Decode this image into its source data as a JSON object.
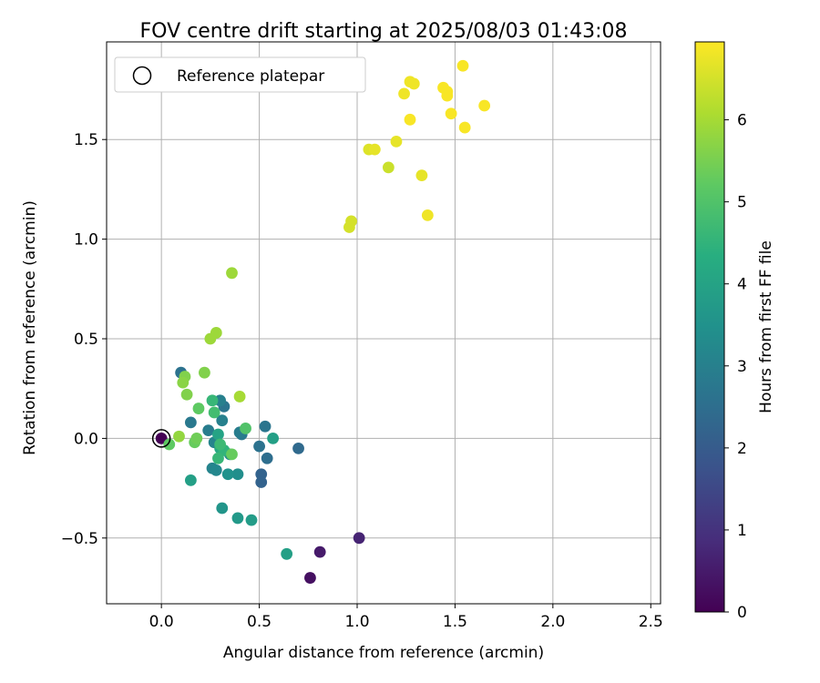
{
  "chart_data": {
    "type": "scatter",
    "title": "FOV centre drift starting at 2025/08/03 01:43:08",
    "xlabel": "Angular distance from reference (arcmin)",
    "ylabel": "Rotation from reference (arcmin)",
    "xlim": [
      -0.28,
      2.55
    ],
    "ylim": [
      -0.83,
      1.99
    ],
    "xticks": [
      0.0,
      0.5,
      1.0,
      1.5,
      2.0,
      2.5
    ],
    "xtick_labels": [
      "0.0",
      "0.5",
      "1.0",
      "1.5",
      "2.0",
      "2.5"
    ],
    "yticks": [
      -0.5,
      0.0,
      0.5,
      1.0,
      1.5
    ],
    "ytick_labels": [
      "−0.5",
      "0.0",
      "0.5",
      "1.0",
      "1.5"
    ],
    "grid": true,
    "legend": {
      "position": "top-left",
      "entries": [
        "Reference platepar"
      ]
    },
    "reference_point": {
      "x": 0.0,
      "y": 0.0
    },
    "colorbar": {
      "label": "Hours from first FF file",
      "colormap": "viridis",
      "range": [
        0,
        6.95
      ],
      "ticks": [
        0,
        1,
        2,
        3,
        4,
        5,
        6
      ],
      "tick_labels": [
        "0",
        "1",
        "2",
        "3",
        "4",
        "5",
        "6"
      ]
    },
    "points": [
      {
        "x": 0.0,
        "y": 0.0,
        "c": 0.0
      },
      {
        "x": 0.76,
        "y": -0.7,
        "c": 0.3
      },
      {
        "x": 0.81,
        "y": -0.57,
        "c": 0.5
      },
      {
        "x": 1.01,
        "y": -0.5,
        "c": 0.7
      },
      {
        "x": 0.7,
        "y": -0.05,
        "c": 2.4
      },
      {
        "x": 0.51,
        "y": -0.18,
        "c": 2.2
      },
      {
        "x": 0.51,
        "y": -0.22,
        "c": 2.2
      },
      {
        "x": 0.54,
        "y": -0.1,
        "c": 2.5
      },
      {
        "x": 0.53,
        "y": 0.06,
        "c": 2.7
      },
      {
        "x": 0.5,
        "y": -0.04,
        "c": 2.6
      },
      {
        "x": 0.41,
        "y": 0.02,
        "c": 2.8
      },
      {
        "x": 0.4,
        "y": 0.03,
        "c": 2.9
      },
      {
        "x": 0.32,
        "y": 0.16,
        "c": 2.7
      },
      {
        "x": 0.1,
        "y": 0.33,
        "c": 2.6
      },
      {
        "x": 0.15,
        "y": 0.08,
        "c": 2.8
      },
      {
        "x": 0.24,
        "y": 0.04,
        "c": 2.9
      },
      {
        "x": 0.31,
        "y": 0.09,
        "c": 3.0
      },
      {
        "x": 0.3,
        "y": 0.19,
        "c": 3.0
      },
      {
        "x": 0.27,
        "y": -0.02,
        "c": 3.1
      },
      {
        "x": 0.26,
        "y": -0.15,
        "c": 3.1
      },
      {
        "x": 0.28,
        "y": -0.16,
        "c": 3.2
      },
      {
        "x": 0.35,
        "y": -0.08,
        "c": 3.3
      },
      {
        "x": 0.39,
        "y": -0.18,
        "c": 3.4
      },
      {
        "x": 0.34,
        "y": -0.18,
        "c": 3.5
      },
      {
        "x": 0.31,
        "y": -0.35,
        "c": 3.6
      },
      {
        "x": 0.39,
        "y": -0.4,
        "c": 3.7
      },
      {
        "x": 0.46,
        "y": -0.41,
        "c": 3.8
      },
      {
        "x": 0.64,
        "y": -0.58,
        "c": 3.9
      },
      {
        "x": 0.57,
        "y": 0.0,
        "c": 3.9
      },
      {
        "x": 0.15,
        "y": -0.21,
        "c": 3.9
      },
      {
        "x": 0.29,
        "y": 0.02,
        "c": 4.0
      },
      {
        "x": 0.3,
        "y": -0.05,
        "c": 4.2
      },
      {
        "x": 0.32,
        "y": -0.06,
        "c": 4.5
      },
      {
        "x": 0.29,
        "y": -0.1,
        "c": 4.6
      },
      {
        "x": 0.3,
        "y": -0.03,
        "c": 4.7
      },
      {
        "x": 0.26,
        "y": 0.19,
        "c": 4.6
      },
      {
        "x": 0.27,
        "y": 0.13,
        "c": 4.8
      },
      {
        "x": 0.43,
        "y": 0.05,
        "c": 5.0
      },
      {
        "x": 0.04,
        "y": -0.03,
        "c": 5.2
      },
      {
        "x": 0.17,
        "y": -0.02,
        "c": 5.3
      },
      {
        "x": 0.18,
        "y": 0.0,
        "c": 5.4
      },
      {
        "x": 0.19,
        "y": 0.15,
        "c": 5.2
      },
      {
        "x": 0.36,
        "y": -0.08,
        "c": 5.3
      },
      {
        "x": 0.12,
        "y": 0.31,
        "c": 5.6
      },
      {
        "x": 0.11,
        "y": 0.28,
        "c": 5.7
      },
      {
        "x": 0.13,
        "y": 0.22,
        "c": 5.6
      },
      {
        "x": 0.22,
        "y": 0.33,
        "c": 5.6
      },
      {
        "x": 0.09,
        "y": 0.01,
        "c": 5.8
      },
      {
        "x": 0.28,
        "y": 0.53,
        "c": 5.9
      },
      {
        "x": 0.25,
        "y": 0.5,
        "c": 5.9
      },
      {
        "x": 0.36,
        "y": 0.83,
        "c": 5.9
      },
      {
        "x": 0.4,
        "y": 0.21,
        "c": 6.0
      },
      {
        "x": 0.96,
        "y": 1.06,
        "c": 6.5
      },
      {
        "x": 0.97,
        "y": 1.09,
        "c": 6.5
      },
      {
        "x": 1.16,
        "y": 1.36,
        "c": 6.4
      },
      {
        "x": 1.06,
        "y": 1.45,
        "c": 6.6
      },
      {
        "x": 1.09,
        "y": 1.45,
        "c": 6.7
      },
      {
        "x": 1.2,
        "y": 1.49,
        "c": 6.7
      },
      {
        "x": 1.33,
        "y": 1.32,
        "c": 6.7
      },
      {
        "x": 1.36,
        "y": 1.12,
        "c": 6.8
      },
      {
        "x": 1.24,
        "y": 1.73,
        "c": 6.8
      },
      {
        "x": 1.27,
        "y": 1.6,
        "c": 6.9
      },
      {
        "x": 1.27,
        "y": 1.79,
        "c": 6.8
      },
      {
        "x": 1.29,
        "y": 1.78,
        "c": 6.8
      },
      {
        "x": 1.44,
        "y": 1.76,
        "c": 6.9
      },
      {
        "x": 1.46,
        "y": 1.72,
        "c": 6.9
      },
      {
        "x": 1.46,
        "y": 1.74,
        "c": 6.9
      },
      {
        "x": 1.48,
        "y": 1.63,
        "c": 6.9
      },
      {
        "x": 1.54,
        "y": 1.87,
        "c": 6.9
      },
      {
        "x": 1.55,
        "y": 1.56,
        "c": 6.9
      },
      {
        "x": 1.65,
        "y": 1.67,
        "c": 6.9
      }
    ]
  }
}
